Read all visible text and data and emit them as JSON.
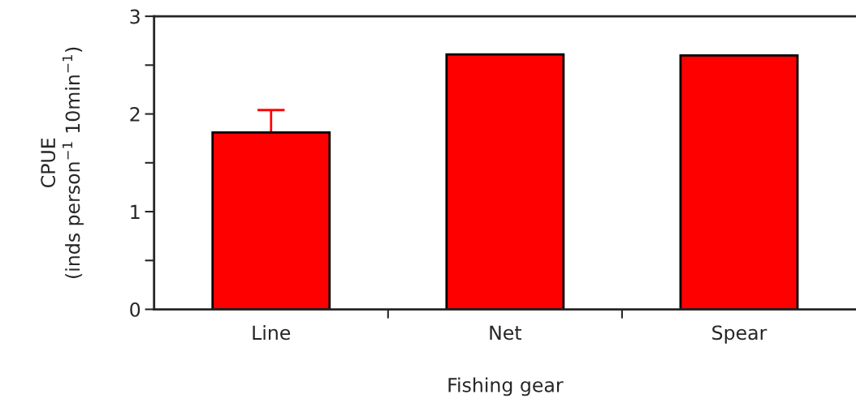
{
  "chart_data": {
    "type": "bar",
    "xlabel": "Fishing gear",
    "ylabel": "CPUE\n(inds person$^{−1}$ 10min$^{−1}$)",
    "categories": [
      "Line",
      "Net",
      "Spear"
    ],
    "values": [
      1.81,
      2.61,
      2.6
    ],
    "errors": [
      [
        1.81,
        2.04
      ],
      null,
      null
    ],
    "color": "#ff0000",
    "ylim": [
      0,
      3
    ],
    "yticks": [
      0,
      {
        "value": 0.5,
        "label": null
      },
      1,
      {
        "value": 1.5,
        "label": null
      },
      2,
      {
        "value": 2.5,
        "label": null
      },
      3
    ],
    "grid": false,
    "legend": false
  }
}
